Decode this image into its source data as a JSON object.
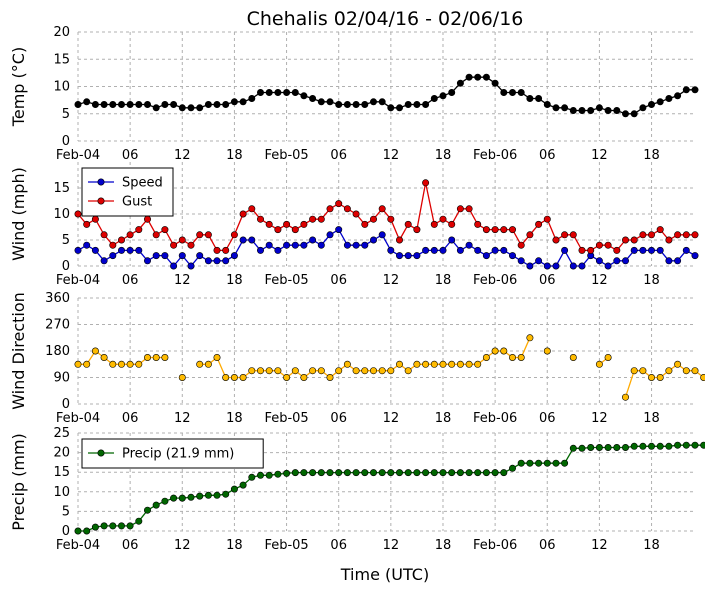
{
  "figure": {
    "title": "Chehalis 02/04/16 - 02/06/16",
    "xlabel": "Time (UTC)",
    "xticks": [
      "Feb-04",
      "06",
      "12",
      "18",
      "Feb-05",
      "06",
      "12",
      "18",
      "Feb-06",
      "06",
      "12",
      "18"
    ],
    "colors": {
      "temp": "#000000",
      "speed": "#0000cc",
      "gust": "#dd0000",
      "dir_line": "#ffaa00",
      "dir_marker": "#ffbb00",
      "precip": "#006600",
      "grid": "#b0b0b0"
    }
  },
  "chart_data": [
    {
      "type": "line",
      "ylabel": "Temp ($^{\\circ}$C)",
      "ylabel_display": "Temp (°C)",
      "ylim": [
        0,
        20
      ],
      "yticks": [
        "0",
        "5",
        "10",
        "15",
        "20"
      ],
      "grid": true,
      "series": [
        {
          "values": [
            6.7,
            7.2,
            6.7,
            6.7,
            6.7,
            6.7,
            6.7,
            6.7,
            6.7,
            6.1,
            6.7,
            6.7,
            6.1,
            6.1,
            6.1,
            6.7,
            6.7,
            6.7,
            7.2,
            7.2,
            7.8,
            8.9,
            8.9,
            8.9,
            8.9,
            8.9,
            8.3,
            7.8,
            7.2,
            7.2,
            6.7,
            6.7,
            6.7,
            6.7,
            7.2,
            7.2,
            6.1,
            6.1,
            6.7,
            6.7,
            6.7,
            7.8,
            8.3,
            8.9,
            10.6,
            11.7,
            11.7,
            11.7,
            10.6,
            8.9,
            8.9,
            8.9,
            7.8,
            7.8,
            6.7,
            6.1,
            6.1,
            5.6,
            5.6,
            5.6,
            6.1,
            5.6,
            5.6,
            5.0,
            5.0,
            6.1,
            6.7,
            7.2,
            7.8,
            8.3,
            9.4,
            9.4
          ]
        }
      ]
    },
    {
      "type": "line",
      "ylabel": "Wind (mph)",
      "ylim": [
        0,
        20
      ],
      "yticks": [
        "0",
        "5",
        "10",
        "15"
      ],
      "grid": true,
      "legend": "top-left",
      "series": [
        {
          "name": "Speed",
          "values": [
            3,
            4,
            3,
            1,
            2,
            3,
            3,
            3,
            1,
            2,
            2,
            0,
            2,
            0,
            2,
            1,
            1,
            1,
            2,
            5,
            5,
            3,
            4,
            3,
            4,
            4,
            4,
            5,
            4,
            6,
            7,
            4,
            4,
            4,
            5,
            6,
            3,
            2,
            2,
            2,
            3,
            3,
            3,
            5,
            3,
            4,
            3,
            2,
            3,
            3,
            2,
            1,
            0,
            1,
            0,
            0,
            3,
            0,
            0,
            2,
            1,
            0,
            1,
            1,
            3,
            3,
            3,
            3,
            1,
            1,
            3,
            2
          ]
        },
        {
          "name": "Gust",
          "values": [
            10,
            8,
            9,
            6,
            4,
            5,
            6,
            7,
            9,
            6,
            7,
            4,
            5,
            4,
            6,
            6,
            3,
            3,
            6,
            10,
            11,
            9,
            8,
            7,
            8,
            7,
            8,
            9,
            9,
            11,
            12,
            11,
            10,
            8,
            9,
            11,
            9,
            5,
            8,
            7,
            16,
            8,
            9,
            8,
            11,
            11,
            8,
            7,
            7,
            7,
            7,
            4,
            6,
            8,
            9,
            5,
            6,
            6,
            3,
            3,
            4,
            4,
            3,
            5,
            5,
            6,
            6,
            7,
            5,
            6,
            6,
            6
          ]
        }
      ]
    },
    {
      "type": "scatter",
      "ylabel": "Wind Direction",
      "ylim": [
        0,
        360
      ],
      "yticks": [
        "0",
        "90",
        "180",
        "270",
        "360"
      ],
      "grid": true,
      "series": [
        {
          "values": [
            135,
            135,
            180,
            158,
            135,
            135,
            135,
            135,
            158,
            158,
            158,
            null,
            90,
            null,
            135,
            135,
            158,
            90,
            90,
            90,
            113,
            113,
            113,
            113,
            90,
            113,
            90,
            113,
            113,
            90,
            113,
            135,
            113,
            113,
            113,
            113,
            113,
            135,
            113,
            135,
            135,
            135,
            135,
            135,
            135,
            135,
            135,
            158,
            180,
            180,
            158,
            158,
            225,
            null,
            180,
            null,
            null,
            158,
            null,
            null,
            135,
            158,
            null,
            23,
            113,
            113,
            90,
            90,
            113,
            135,
            113,
            113,
            90
          ]
        }
      ]
    },
    {
      "type": "line",
      "ylabel": "Precip (mm)",
      "ylim": [
        0,
        25
      ],
      "yticks": [
        "0",
        "5",
        "10",
        "15",
        "20",
        "25"
      ],
      "grid": true,
      "legend": "top-left",
      "series": [
        {
          "name": "Precip (21.9 mm)",
          "values": [
            0,
            0,
            1,
            1.3,
            1.3,
            1.3,
            1.3,
            2.5,
            5.3,
            6.6,
            7.6,
            8.4,
            8.4,
            8.6,
            8.9,
            9.1,
            9.1,
            9.4,
            10.7,
            11.7,
            13.7,
            14.2,
            14.2,
            14.5,
            14.7,
            14.9,
            14.9,
            14.9,
            14.9,
            14.9,
            14.9,
            14.9,
            14.9,
            14.9,
            14.9,
            14.9,
            14.9,
            14.9,
            14.9,
            14.9,
            14.9,
            14.9,
            14.9,
            14.9,
            14.9,
            14.9,
            14.9,
            14.9,
            14.9,
            14.9,
            16,
            17.3,
            17.3,
            17.3,
            17.3,
            17.3,
            17.3,
            21.1,
            21.1,
            21.3,
            21.3,
            21.3,
            21.3,
            21.3,
            21.6,
            21.6,
            21.6,
            21.6,
            21.6,
            21.9,
            21.9,
            21.9,
            21.9
          ]
        }
      ]
    }
  ]
}
